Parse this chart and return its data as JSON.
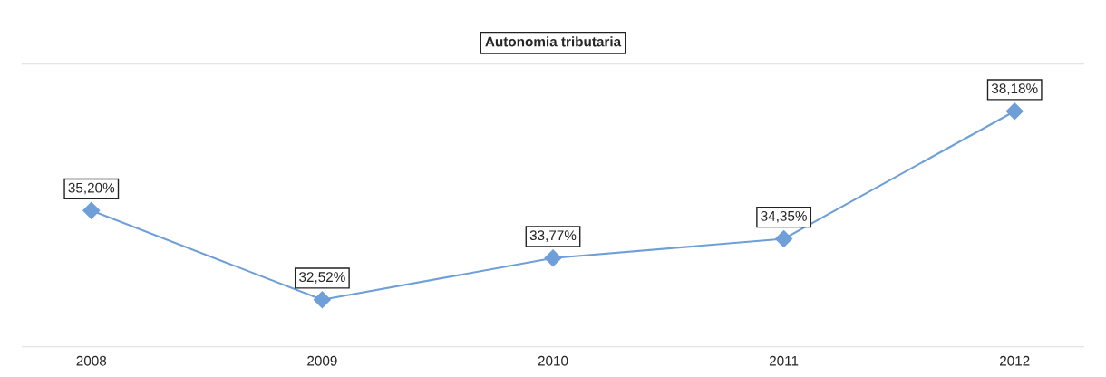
{
  "chart_data": {
    "type": "line",
    "title": "Autonomia tributaria",
    "categories": [
      "2008",
      "2009",
      "2010",
      "2011",
      "2012"
    ],
    "series": [
      {
        "color": "#6f9fd8",
        "values": [
          35.2,
          32.52,
          33.77,
          34.35,
          38.18
        ],
        "value_labels": [
          "35,20%",
          "32,52%",
          "33,77%",
          "34,35%",
          "38,18%"
        ]
      }
    ],
    "marker": "diamond",
    "line_style": "solid",
    "grid": false,
    "tick_labels": "x"
  }
}
